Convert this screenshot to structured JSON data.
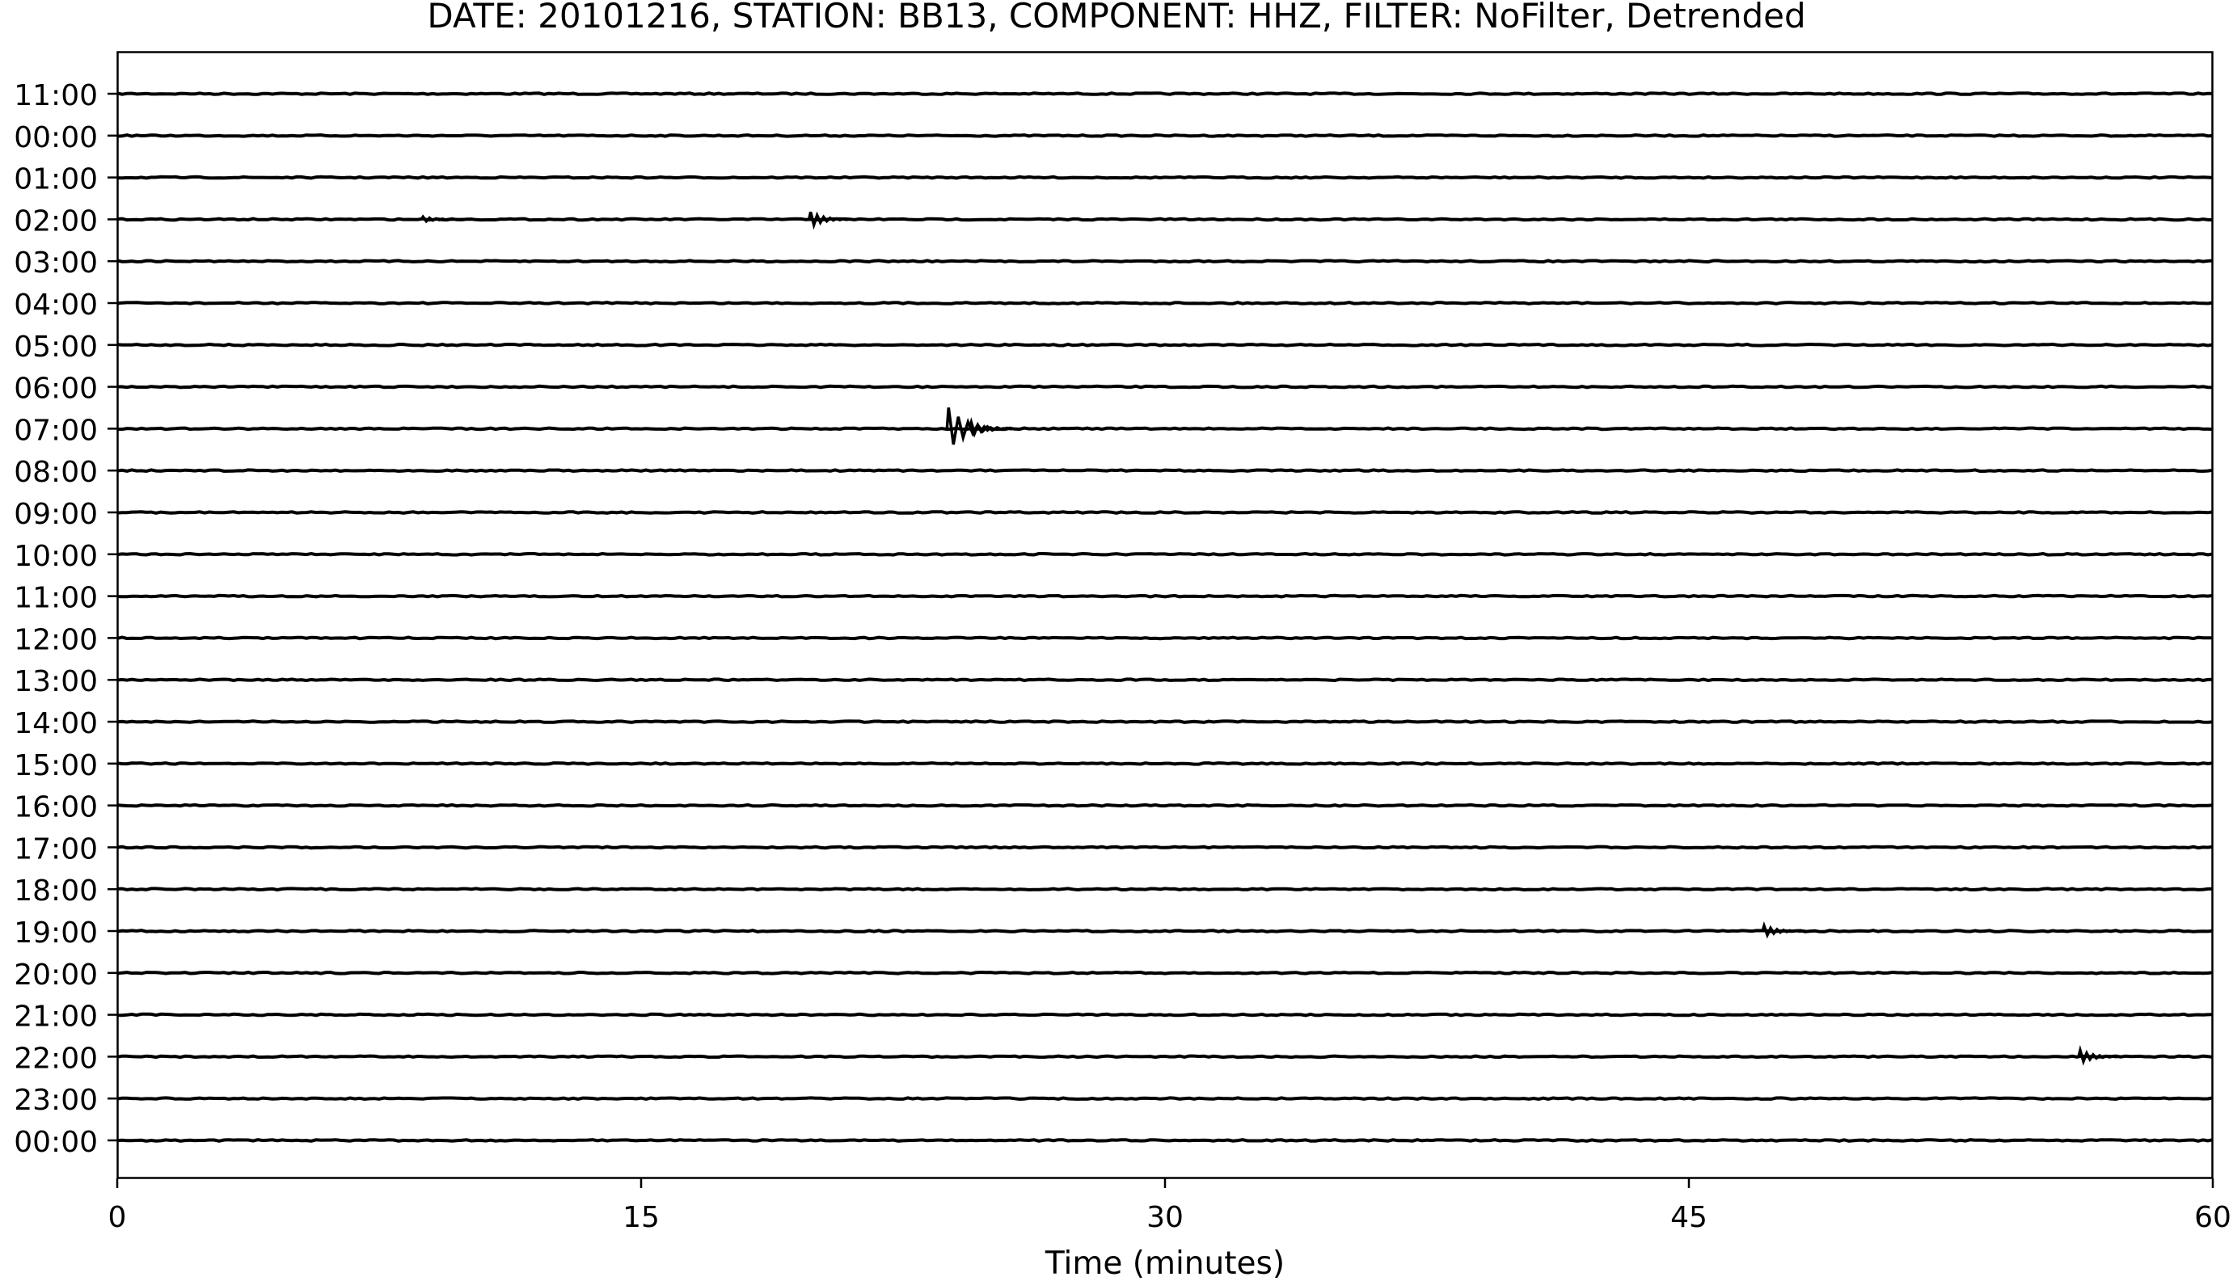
{
  "chart_data": {
    "type": "line",
    "title": "DATE: 20101216, STATION: BB13, COMPONENT: HHZ, FILTER: NoFilter, Detrended",
    "xlabel": "Time (minutes)",
    "ylabel": "",
    "xlim": [
      0,
      60
    ],
    "x_ticks": [
      "0",
      "15",
      "30",
      "45",
      "60"
    ],
    "grid": false,
    "trace_color": "#000000",
    "rows": [
      {
        "label": "11:00",
        "events": []
      },
      {
        "label": "00:00",
        "events": []
      },
      {
        "label": "01:00",
        "events": []
      },
      {
        "label": "02:00",
        "events": [
          {
            "minute": 8.8,
            "amplitude": 0.12
          },
          {
            "minute": 19.9,
            "amplitude": 0.35
          }
        ]
      },
      {
        "label": "03:00",
        "events": []
      },
      {
        "label": "04:00",
        "events": []
      },
      {
        "label": "05:00",
        "events": []
      },
      {
        "label": "06:00",
        "events": []
      },
      {
        "label": "07:00",
        "events": [
          {
            "minute": 23.85,
            "amplitude": 1.0
          },
          {
            "minute": 24.5,
            "amplitude": 0.3
          }
        ]
      },
      {
        "label": "08:00",
        "events": []
      },
      {
        "label": "09:00",
        "events": []
      },
      {
        "label": "10:00",
        "events": []
      },
      {
        "label": "11:00",
        "events": []
      },
      {
        "label": "12:00",
        "events": []
      },
      {
        "label": "13:00",
        "events": []
      },
      {
        "label": "14:00",
        "events": []
      },
      {
        "label": "15:00",
        "events": []
      },
      {
        "label": "16:00",
        "events": []
      },
      {
        "label": "17:00",
        "events": []
      },
      {
        "label": "18:00",
        "events": []
      },
      {
        "label": "19:00",
        "events": [
          {
            "minute": 47.2,
            "amplitude": 0.25
          }
        ]
      },
      {
        "label": "20:00",
        "events": []
      },
      {
        "label": "21:00",
        "events": []
      },
      {
        "label": "22:00",
        "events": [
          {
            "minute": 56.25,
            "amplitude": 0.3
          }
        ]
      },
      {
        "label": "23:00",
        "events": []
      },
      {
        "label": "00:00",
        "events": []
      }
    ]
  }
}
